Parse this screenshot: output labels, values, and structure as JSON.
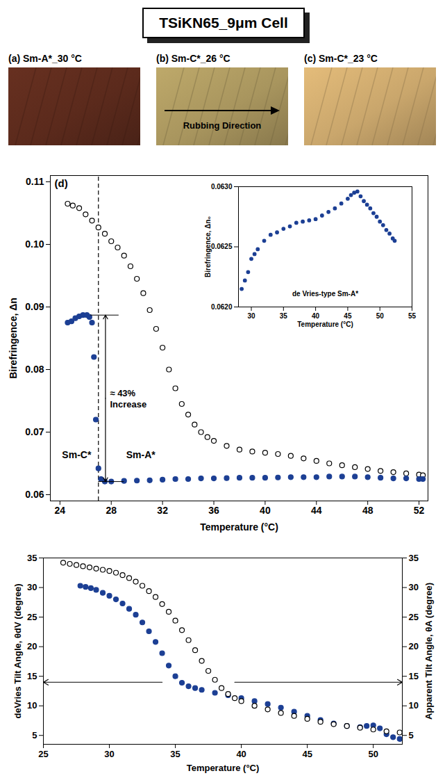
{
  "header": {
    "title": "TSiKN65_9μm Cell"
  },
  "images": [
    {
      "label": "(a) Sm-A*_30 °C",
      "color": "#5b2a1c"
    },
    {
      "label": "(b) Sm-C*_26 °C",
      "color": "#a8955e",
      "annotation": "Rubbing Direction"
    },
    {
      "label": "(c) Sm-C*_23 °C",
      "color": "#c9a66c"
    }
  ],
  "chart_data": [
    {
      "type": "scatter",
      "panel": "(d)",
      "xlabel": "Temperature (°C)",
      "ylabel": "Birefringence, Δn",
      "xlim": [
        23.25,
        52.7
      ],
      "xticks": [
        24,
        28,
        32,
        36,
        40,
        44,
        48,
        52
      ],
      "ylim": [
        0.059,
        0.111
      ],
      "yticks": [
        0.06,
        0.07,
        0.08,
        0.09,
        {
          "value": 0.1,
          "label": "0.10"
        },
        0.11
      ],
      "transition": 27,
      "phase_labels": [
        "Sm-C*",
        "Sm-A*"
      ],
      "series": [
        {
          "color": "#000000",
          "marker": "open circle",
          "x": [
            24.6,
            25.0,
            25.5,
            26.0,
            26.5,
            27.0,
            27.5,
            28.0,
            28.5,
            29.0,
            29.5,
            30.0,
            30.5,
            31.0,
            31.5,
            32.0,
            32.5,
            33.0,
            33.5,
            34.0,
            34.5,
            35.0,
            35.5,
            36.0,
            37.0,
            38.0,
            39.0,
            40.0,
            41.0,
            42.0,
            43.0,
            44.0,
            45.0,
            46.0,
            47.0,
            48.0,
            49.0,
            50.0,
            51.0,
            52.0,
            52.3
          ],
          "values": [
            0.1065,
            0.1062,
            0.1058,
            0.1048,
            0.1038,
            0.1027,
            0.1017,
            0.1005,
            0.0995,
            0.0982,
            0.0965,
            0.0945,
            0.0922,
            0.0895,
            0.0865,
            0.0835,
            0.08,
            0.077,
            0.0745,
            0.0728,
            0.0712,
            0.07,
            0.0692,
            0.0686,
            0.0678,
            0.0672,
            0.0669,
            0.0667,
            0.0665,
            0.0662,
            0.0658,
            0.0654,
            0.065,
            0.0647,
            0.0644,
            0.0641,
            0.0638,
            0.0636,
            0.0634,
            0.0632,
            0.0631
          ]
        },
        {
          "color": "#1c3f94",
          "marker": "filled circle",
          "annotation": [
            "≈ 43%",
            "Increase"
          ],
          "x": [
            24.6,
            24.9,
            25.2,
            25.5,
            25.8,
            26.1,
            26.3,
            26.5,
            26.65,
            26.8,
            27.0,
            27.2,
            27.5,
            28,
            29,
            30,
            31,
            32,
            33,
            34,
            35,
            36,
            37,
            38,
            39,
            40,
            41,
            42,
            43,
            44,
            45,
            46,
            47,
            48,
            49,
            50,
            51,
            52,
            52.3
          ],
          "values": [
            0.0875,
            0.0877,
            0.0882,
            0.0885,
            0.0887,
            0.0887,
            0.0884,
            0.0875,
            0.082,
            0.072,
            0.0642,
            0.0625,
            0.0621,
            0.0621,
            0.0622,
            0.06225,
            0.0623,
            0.0624,
            0.0625,
            0.0625,
            0.0626,
            0.0626,
            0.06265,
            0.0627,
            0.0627,
            0.0627,
            0.06275,
            0.0628,
            0.0628,
            0.0628,
            0.0629,
            0.0629,
            0.0629,
            0.0628,
            0.0627,
            0.0626,
            0.0626,
            0.0625,
            0.0625
          ]
        }
      ]
    },
    {
      "type": "scatter",
      "xlabel": "Temperature (°C)",
      "ylabel": "Birefringence, Δn₀",
      "annotation": "de Vries-type Sm-A*",
      "xlim": [
        28,
        55
      ],
      "xticks": [
        30,
        35,
        40,
        45,
        50,
        55
      ],
      "ylim": [
        0.062,
        0.063
      ],
      "yticks": [
        {
          "value": 0.062,
          "label": "0.0620"
        },
        {
          "value": 0.0625,
          "label": "0.0625"
        },
        {
          "value": 0.063,
          "label": "0.0630"
        }
      ],
      "series": [
        {
          "color": "#1c3f94",
          "marker": "filled circle",
          "x": [
            28.5,
            29,
            29.5,
            30,
            30.5,
            31,
            32,
            33,
            34,
            35,
            36,
            37,
            38,
            39,
            40,
            41,
            42,
            43,
            44,
            45,
            45.5,
            46,
            46.5,
            47,
            47.5,
            48,
            48.5,
            49,
            49.5,
            50,
            50.5,
            51,
            51.5,
            52,
            52.3
          ],
          "values": [
            0.06215,
            0.06222,
            0.06229,
            0.0624,
            0.06244,
            0.06248,
            0.06255,
            0.0626,
            0.06262,
            0.06265,
            0.06267,
            0.0627,
            0.06271,
            0.06272,
            0.06273,
            0.06276,
            0.06279,
            0.06282,
            0.06286,
            0.0629,
            0.06293,
            0.06295,
            0.06296,
            0.06292,
            0.06288,
            0.06285,
            0.06282,
            0.06278,
            0.06275,
            0.06271,
            0.06268,
            0.06264,
            0.06261,
            0.06257,
            0.06255
          ]
        }
      ]
    },
    {
      "type": "scatter",
      "xlabel": "Temperature (°C)",
      "ylabel": "deVries Tilt Angle, θdV (degree)",
      "y2label": "Apparent Tilt Angle, θA (degree)",
      "xlim": [
        25,
        52.2
      ],
      "xticks": [
        25,
        30,
        35,
        40,
        45,
        50
      ],
      "ylim": [
        3.5,
        35
      ],
      "yticks": [
        5,
        10,
        15,
        20,
        25,
        30,
        35
      ],
      "y2lim": [
        3.5,
        35
      ],
      "y2ticks": [
        5,
        10,
        15,
        20,
        25,
        30,
        35
      ],
      "series": [
        {
          "color": "#1c3f94",
          "marker": "filled circle",
          "axis": "y",
          "x": [
            27.8,
            28.2,
            28.6,
            29,
            29.5,
            30,
            30.5,
            31,
            31.5,
            32,
            32.5,
            33,
            33.5,
            34,
            34.5,
            35,
            35.5,
            36,
            36.5,
            37,
            38,
            39,
            40,
            41,
            42,
            43,
            44,
            45,
            46,
            47,
            48,
            49,
            49.5,
            50,
            50.5,
            51,
            51.5,
            52
          ],
          "values": [
            30.3,
            30.1,
            29.9,
            29.6,
            29.1,
            28.6,
            28.0,
            27.3,
            26.4,
            25.4,
            24.1,
            22.6,
            20.8,
            18.9,
            16.8,
            15.0,
            13.9,
            13.3,
            13.0,
            12.7,
            12.2,
            11.8,
            11.3,
            10.8,
            10.3,
            9.7,
            9.0,
            8.3,
            7.6,
            7.0,
            6.6,
            6.4,
            6.6,
            6.7,
            6.2,
            5.2,
            4.7,
            4.4
          ]
        },
        {
          "color": "#000000",
          "marker": "open circle",
          "axis": "y2",
          "x": [
            26.5,
            27,
            27.5,
            28,
            28.5,
            29,
            29.5,
            30,
            30.5,
            31,
            31.5,
            32,
            32.5,
            33,
            33.5,
            34,
            34.5,
            35,
            35.5,
            36,
            36.5,
            37,
            37.5,
            38,
            38.5,
            39,
            39.5,
            40,
            41,
            42,
            43,
            44,
            45,
            46,
            47,
            48,
            49,
            50,
            51,
            52
          ],
          "values": [
            34.2,
            34.0,
            33.8,
            33.6,
            33.4,
            33.2,
            33.0,
            32.8,
            32.5,
            32.1,
            31.6,
            31.0,
            30.3,
            29.4,
            28.4,
            27.2,
            25.9,
            24.4,
            22.8,
            21.1,
            19.4,
            17.6,
            15.9,
            14.4,
            13.0,
            12.0,
            11.3,
            10.8,
            10.0,
            9.4,
            8.8,
            8.3,
            7.8,
            7.3,
            6.9,
            6.6,
            6.3,
            6.0,
            5.7,
            5.5
          ]
        }
      ]
    }
  ]
}
